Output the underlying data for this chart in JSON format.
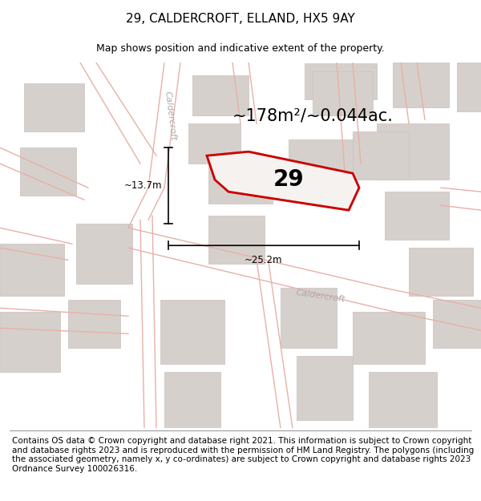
{
  "title": "29, CALDERCROFT, ELLAND, HX5 9AY",
  "subtitle": "Map shows position and indicative extent of the property.",
  "footer": "Contains OS data © Crown copyright and database right 2021. This information is subject to Crown copyright and database rights 2023 and is reproduced with the permission of HM Land Registry. The polygons (including the associated geometry, namely x, y co-ordinates) are subject to Crown copyright and database rights 2023 Ordnance Survey 100026316.",
  "area_text": "~178m²/~0.044ac.",
  "property_number": "29",
  "dim1_text": "~13.7m",
  "dim2_text": "~25.2m",
  "map_bg": "#f2eeeb",
  "building_color": "#d6d0cc",
  "building_edge": "#c8c0bc",
  "road_color": "#f2eeeb",
  "road_line_color": "#e8b0a8",
  "highlight_color": "#cc0000",
  "label_color": "#aaaaaa",
  "title_fontsize": 11,
  "subtitle_fontsize": 9,
  "footer_fontsize": 7.5
}
